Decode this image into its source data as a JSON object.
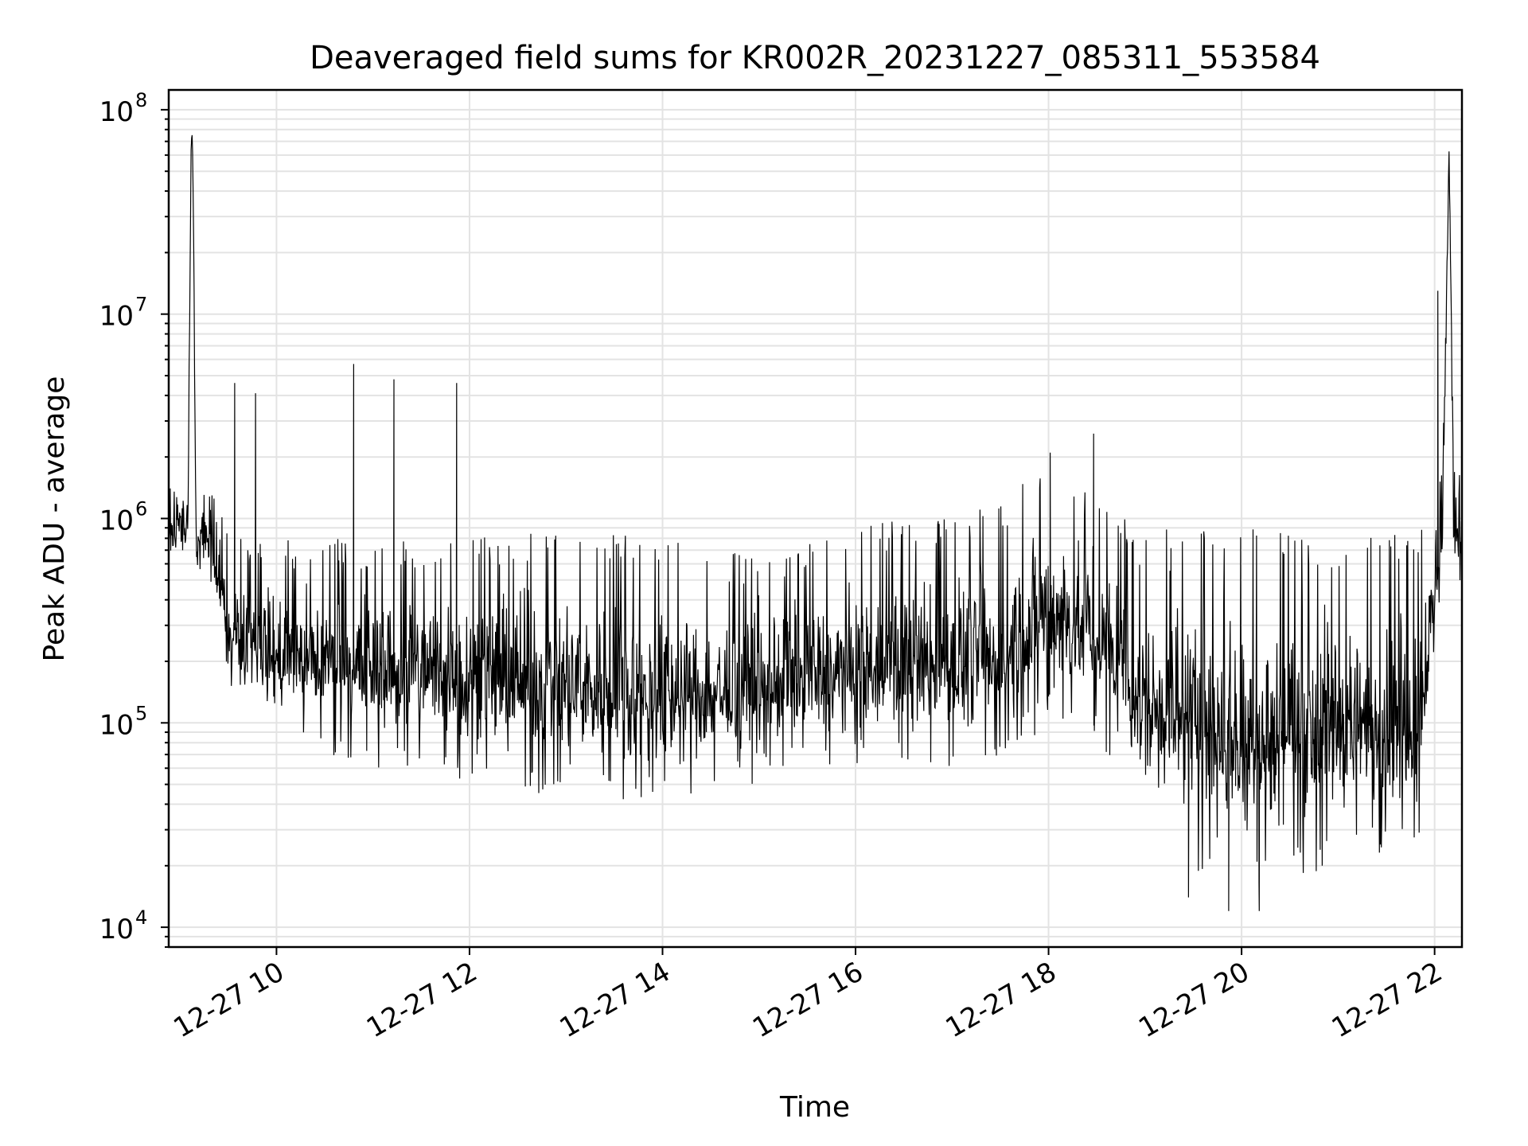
{
  "chart_data": {
    "type": "line",
    "title": "Deaveraged field sums for KR002R_20231227_085311_553584",
    "xlabel": "Time",
    "ylabel": "Peak ADU - average",
    "yscale": "log",
    "ylim": [
      8000,
      125000000
    ],
    "xlim": [
      "2023-12-27 08:53",
      "2023-12-27 22:17"
    ],
    "x_ticks": [
      {
        "label": "12-27 10",
        "time": "2023-12-27 10:00"
      },
      {
        "label": "12-27 12",
        "time": "2023-12-27 12:00"
      },
      {
        "label": "12-27 14",
        "time": "2023-12-27 14:00"
      },
      {
        "label": "12-27 16",
        "time": "2023-12-27 16:00"
      },
      {
        "label": "12-27 18",
        "time": "2023-12-27 18:00"
      },
      {
        "label": "12-27 20",
        "time": "2023-12-27 20:00"
      },
      {
        "label": "12-27 22",
        "time": "2023-12-27 22:00"
      }
    ],
    "y_ticks": [
      {
        "base": "10",
        "exp": "4",
        "value": 10000
      },
      {
        "base": "10",
        "exp": "5",
        "value": 100000
      },
      {
        "base": "10",
        "exp": "6",
        "value": 1000000
      },
      {
        "base": "10",
        "exp": "7",
        "value": 10000000
      },
      {
        "base": "10",
        "exp": "8",
        "value": 100000000
      }
    ],
    "grid": "major and minor",
    "line_color": "#000000",
    "series_profile": {
      "time": [
        "2023-12-27 08:53",
        "2023-12-27 09:00",
        "2023-12-27 09:05",
        "2023-12-27 09:07",
        "2023-12-27 09:08",
        "2023-12-27 09:10",
        "2023-12-27 09:15",
        "2023-12-27 09:30",
        "2023-12-27 10:00",
        "2023-12-27 11:00",
        "2023-12-27 12:00",
        "2023-12-27 13:00",
        "2023-12-27 14:00",
        "2023-12-27 15:00",
        "2023-12-27 15:30",
        "2023-12-27 16:30",
        "2023-12-27 17:30",
        "2023-12-27 18:00",
        "2023-12-27 18:30",
        "2023-12-27 19:00",
        "2023-12-27 20:00",
        "2023-12-27 21:00",
        "2023-12-27 21:50",
        "2023-12-27 22:05",
        "2023-12-27 22:09",
        "2023-12-27 22:12",
        "2023-12-27 22:17"
      ],
      "typical": [
        800000,
        900000,
        1000000,
        75000000,
        70000000,
        650000,
        900000,
        300000,
        200000,
        180000,
        170000,
        140000,
        130000,
        140000,
        160000,
        180000,
        200000,
        350000,
        250000,
        120000,
        80000,
        90000,
        100000,
        900000,
        65000000,
        1000000,
        800000
      ],
      "upper": [
        1500000,
        1800000,
        2000000,
        80000000,
        75000000,
        1200000,
        1700000,
        900000,
        800000,
        800000,
        800000,
        900000,
        800000,
        650000,
        800000,
        1000000,
        1200000,
        2000000,
        1200000,
        900000,
        900000,
        800000,
        900000,
        2200000,
        70000000,
        2000000,
        1500000
      ],
      "lower": [
        600000,
        650000,
        700000,
        60000000,
        55000000,
        400000,
        500000,
        150000,
        80000,
        60000,
        45000,
        45000,
        40000,
        50000,
        60000,
        60000,
        60000,
        100000,
        80000,
        25000,
        15000,
        20000,
        25000,
        500000,
        50000000,
        500000,
        400000
      ]
    },
    "spikes": [
      {
        "time": "2023-12-27 09:34",
        "value": 4600000
      },
      {
        "time": "2023-12-27 09:47",
        "value": 4100000
      },
      {
        "time": "2023-12-27 10:48",
        "value": 5700000
      },
      {
        "time": "2023-12-27 11:13",
        "value": 4800000
      },
      {
        "time": "2023-12-27 11:52",
        "value": 4600000
      },
      {
        "time": "2023-12-27 18:01",
        "value": 2100000
      },
      {
        "time": "2023-12-27 18:28",
        "value": 2600000
      },
      {
        "time": "2023-12-27 22:02",
        "value": 13000000
      }
    ],
    "dips": [
      {
        "time": "2023-12-27 19:27",
        "value": 14000
      },
      {
        "time": "2023-12-27 19:52",
        "value": 12000
      },
      {
        "time": "2023-12-27 20:11",
        "value": 12000
      }
    ]
  }
}
